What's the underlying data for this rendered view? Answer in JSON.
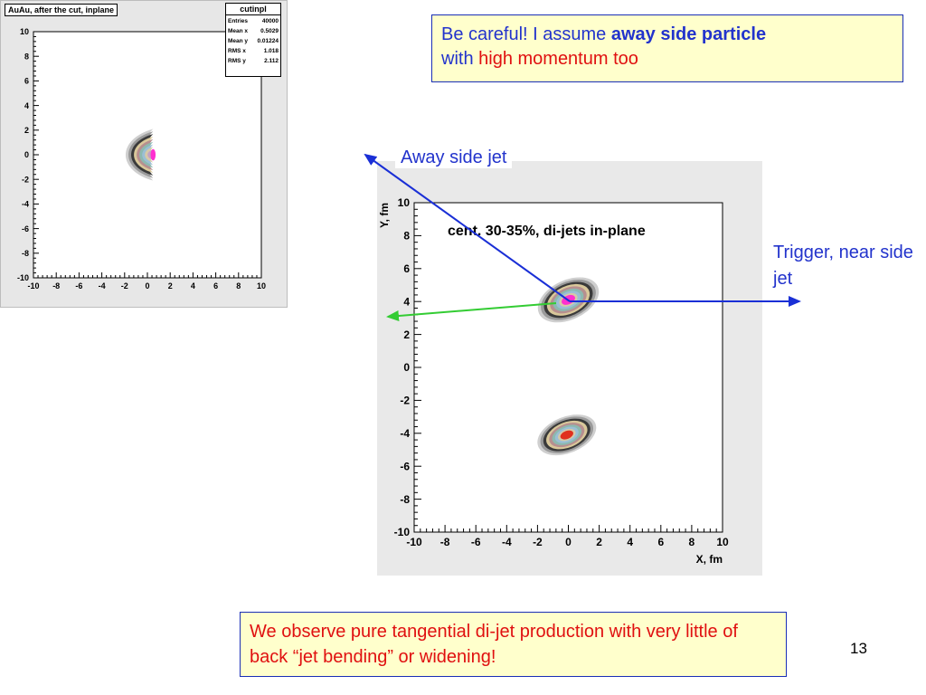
{
  "histogram_small": {
    "title": "AuAu, after the cut, inplane",
    "stats": {
      "title": "cutinpl",
      "rows": [
        {
          "label": "Entries",
          "value": "40000"
        },
        {
          "label": "Mean x",
          "value": "0.5029"
        },
        {
          "label": "Mean y",
          "value": "0.01224"
        },
        {
          "label": "RMS x",
          "value": "1.018"
        },
        {
          "label": "RMS y",
          "value": "2.112"
        }
      ]
    }
  },
  "notes": {
    "top_part1": "Be careful! I assume ",
    "top_bold": "away side particle",
    "top_part2": "with ",
    "top_red": "high momentum too",
    "bottom": "We observe pure tangential di-jet production with very  little of  back “jet bending” or widening!"
  },
  "annotations": {
    "away": "Away side jet",
    "trigger": "Trigger, near side jet"
  },
  "page_number": "13",
  "colors": {
    "accent_blue": "#2233cc",
    "accent_red": "#e01010",
    "note_bg": "#ffffcc",
    "arrow_green": "#33cc33",
    "arrow_blue": "#1a2fd6"
  },
  "chart_data": [
    {
      "type": "heatmap",
      "title": "AuAu, after the cut, inplane",
      "xlim": [
        -10,
        10
      ],
      "ylim": [
        -10,
        10
      ],
      "x_ticks": [
        -10,
        -8,
        -6,
        -4,
        -2,
        0,
        2,
        4,
        6,
        8,
        10
      ],
      "y_ticks": [
        -10,
        -8,
        -6,
        -4,
        -2,
        0,
        2,
        4,
        6,
        8,
        10
      ],
      "blobs": [
        {
          "x": 0.5,
          "y": 0.0,
          "sx": 1.0,
          "sy": 2.1,
          "bend": -0.09,
          "peak": "magenta"
        }
      ]
    },
    {
      "type": "heatmap",
      "title": "cent. 30-35%, di-jets in-plane",
      "xlabel": "X, fm",
      "ylabel": "Y, fm",
      "xlim": [
        -10,
        10
      ],
      "ylim": [
        -10,
        10
      ],
      "x_ticks": [
        -10,
        -8,
        -6,
        -4,
        -2,
        0,
        2,
        4,
        6,
        8,
        10
      ],
      "y_ticks": [
        -10,
        -8,
        -6,
        -4,
        -2,
        0,
        2,
        4,
        6,
        8,
        10
      ],
      "blobs": [
        {
          "x": 0.0,
          "y": 4.1,
          "sx": 2.1,
          "sy": 1.2,
          "angle": -25,
          "peak": "magenta"
        },
        {
          "x": -0.1,
          "y": -4.1,
          "sx": 2.0,
          "sy": 1.1,
          "angle": -22,
          "peak": "red"
        }
      ]
    }
  ]
}
